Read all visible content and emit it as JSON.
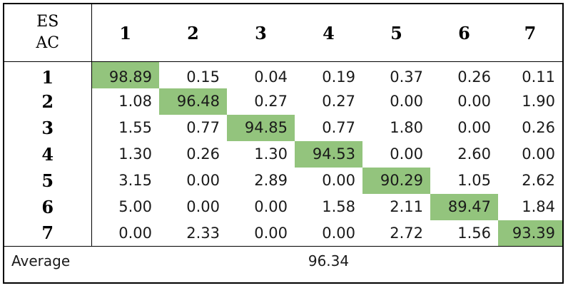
{
  "table": {
    "corner_top": "ES",
    "corner_bottom": "AC",
    "columns": [
      "1",
      "2",
      "3",
      "4",
      "5",
      "6",
      "7"
    ],
    "rows": [
      {
        "label": "1",
        "values": [
          "98.89",
          "0.15",
          "0.04",
          "0.19",
          "0.37",
          "0.26",
          "0.11"
        ]
      },
      {
        "label": "2",
        "values": [
          "1.08",
          "96.48",
          "0.27",
          "0.27",
          "0.00",
          "0.00",
          "1.90"
        ]
      },
      {
        "label": "3",
        "values": [
          "1.55",
          "0.77",
          "94.85",
          "0.77",
          "1.80",
          "0.00",
          "0.26"
        ]
      },
      {
        "label": "4",
        "values": [
          "1.30",
          "0.26",
          "1.30",
          "94.53",
          "0.00",
          "2.60",
          "0.00"
        ]
      },
      {
        "label": "5",
        "values": [
          "3.15",
          "0.00",
          "2.89",
          "0.00",
          "90.29",
          "1.05",
          "2.62"
        ]
      },
      {
        "label": "6",
        "values": [
          "5.00",
          "0.00",
          "0.00",
          "1.58",
          "2.11",
          "89.47",
          "1.84"
        ]
      },
      {
        "label": "7",
        "values": [
          "0.00",
          "2.33",
          "0.00",
          "0.00",
          "2.72",
          "1.56",
          "93.39"
        ]
      }
    ],
    "average_label": "Average",
    "average_value": "96.34",
    "highlight_color": "#93c47d"
  }
}
